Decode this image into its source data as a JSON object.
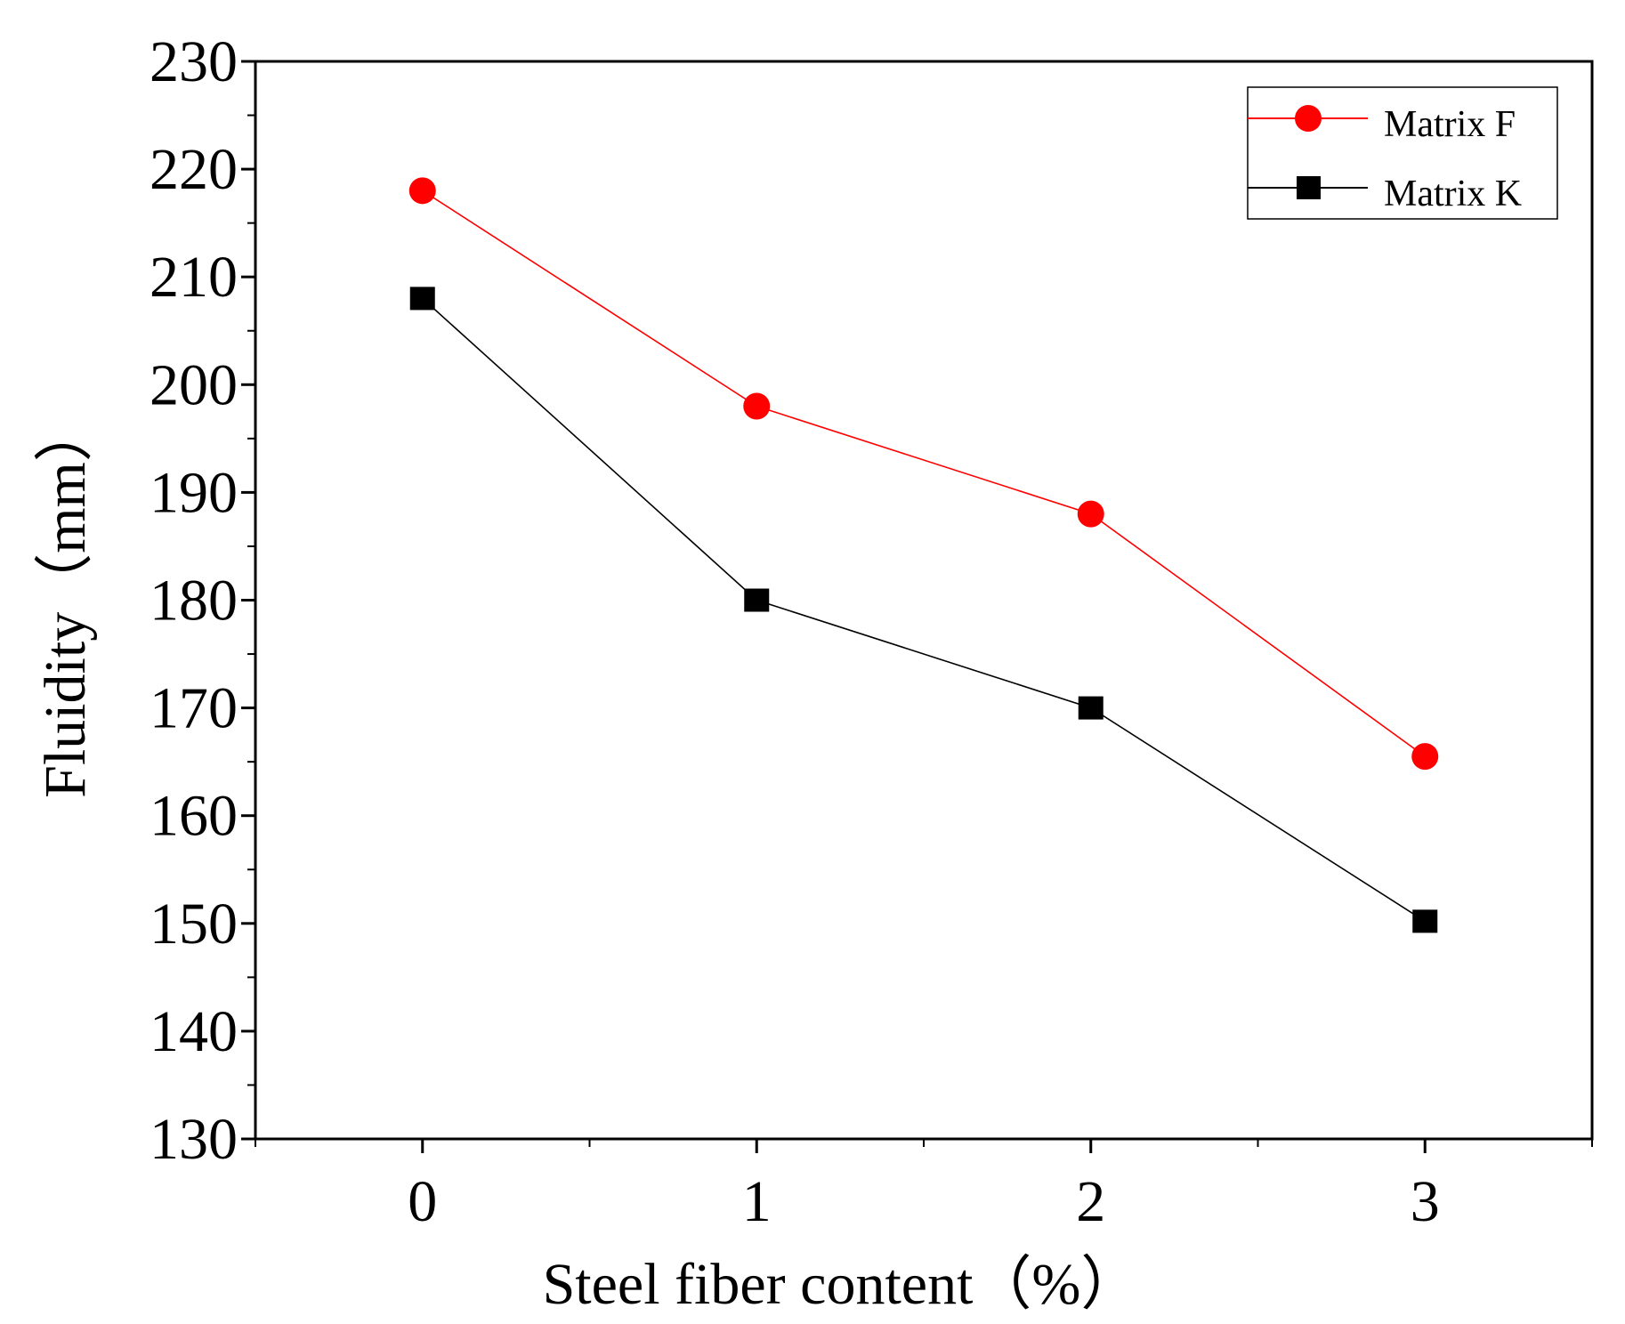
{
  "chart_data": {
    "type": "line",
    "title": "",
    "xlabel": "Steel fiber content（%）",
    "ylabel": "Fluidity（mm）",
    "x": [
      0,
      1,
      2,
      3
    ],
    "xlim": [
      -0.5,
      3.5
    ],
    "ylim": [
      130,
      230
    ],
    "xticks": [
      0,
      1,
      2,
      3
    ],
    "xtick_labels": [
      "0",
      "1",
      "2",
      "3"
    ],
    "yticks": [
      130,
      140,
      150,
      160,
      170,
      180,
      190,
      200,
      210,
      220,
      230
    ],
    "ytick_labels": [
      "130",
      "140",
      "150",
      "160",
      "170",
      "180",
      "190",
      "200",
      "210",
      "220",
      "230"
    ],
    "grid": false,
    "legend_position": "top-right",
    "series": [
      {
        "name": "Matrix F",
        "color": "#ff0000",
        "marker": "circle",
        "values": [
          218,
          198,
          188,
          165.5
        ]
      },
      {
        "name": "Matrix K",
        "color": "#000000",
        "marker": "square",
        "values": [
          208,
          180,
          170,
          150.2
        ]
      }
    ]
  }
}
